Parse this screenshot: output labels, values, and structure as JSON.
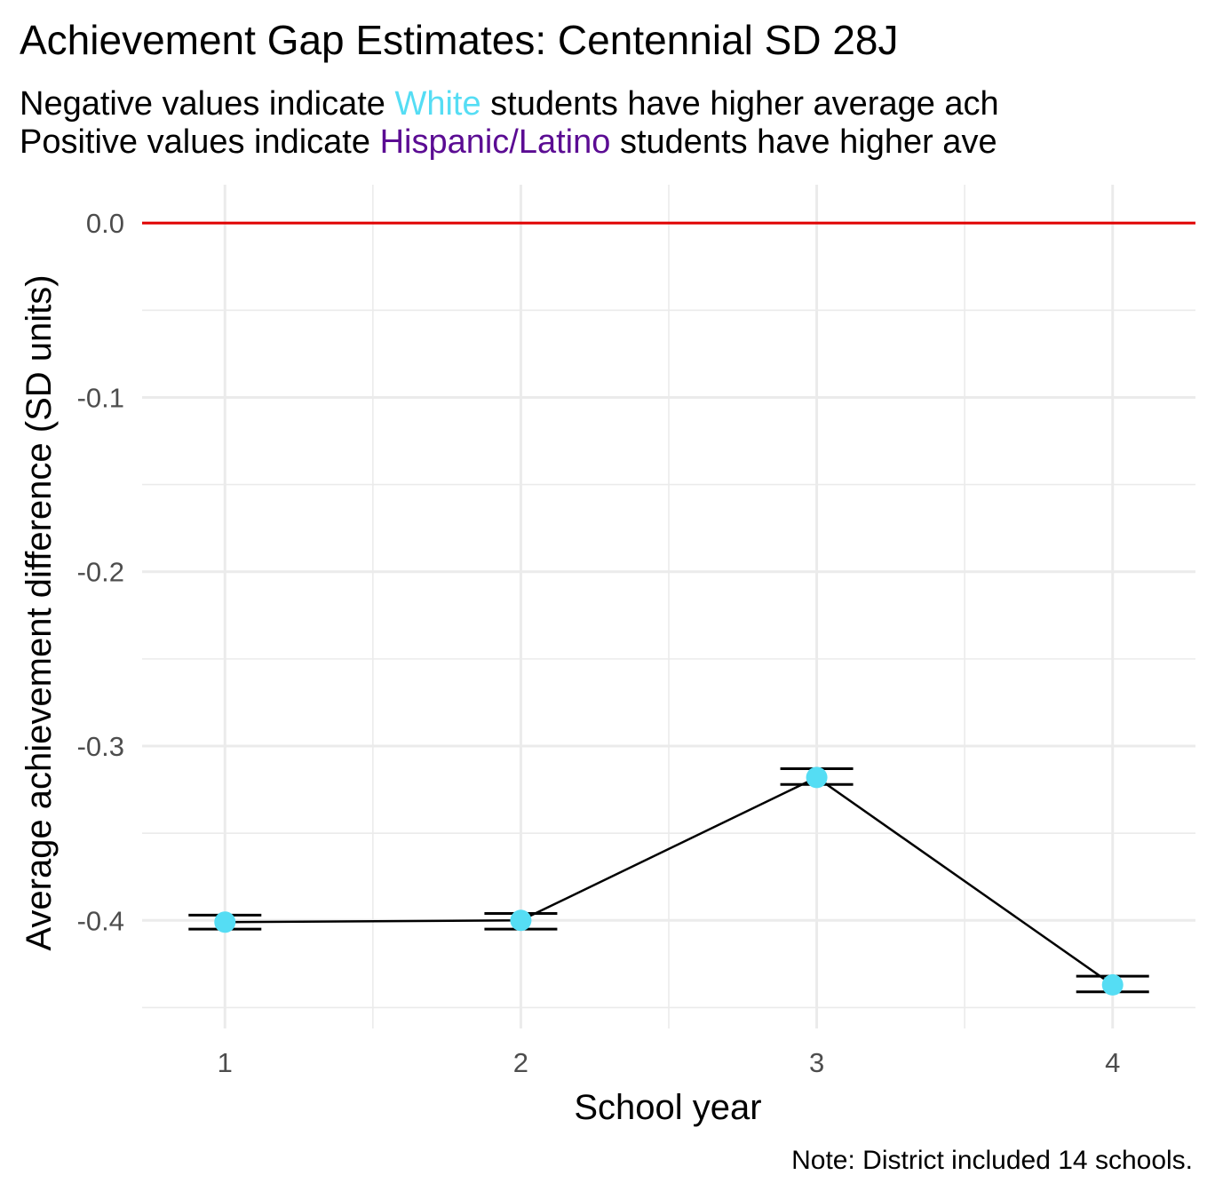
{
  "chart_data": {
    "type": "line",
    "title": "Achievement Gap Estimates: Centennial SD 28J",
    "subtitle": {
      "line1": {
        "before": "Negative values indicate ",
        "highlight": "White",
        "highlight_color": "#55DDF4",
        "after": " students have higher average ach"
      },
      "line2": {
        "before": "Positive values indicate ",
        "highlight": "Hispanic/Latino",
        "highlight_color": "#5B0C93",
        "after": " students have higher ave"
      }
    },
    "xlabel": "School year",
    "ylabel": "Average achievement difference (SD units)",
    "caption": "Note: District included 14 schools.",
    "x": [
      1,
      2,
      3,
      4
    ],
    "x_tick_labels": [
      "1",
      "2",
      "3",
      "4"
    ],
    "y_ticks": [
      0.0,
      -0.1,
      -0.2,
      -0.3,
      -0.4
    ],
    "y_tick_labels": [
      "0.0",
      "-0.1",
      "-0.2",
      "-0.3",
      "-0.4"
    ],
    "xlim": [
      0.72,
      4.28
    ],
    "ylim": [
      -0.462,
      0.022
    ],
    "series": [
      {
        "values": [
          -0.401,
          -0.4,
          -0.318,
          -0.437
        ],
        "error_low": [
          -0.405,
          -0.405,
          -0.322,
          -0.441
        ],
        "error_high": [
          -0.397,
          -0.396,
          -0.313,
          -0.432
        ],
        "point_color": "#55DDF4",
        "line_color": "#000000"
      }
    ],
    "reference_line": {
      "y": 0,
      "color": "#E00000"
    },
    "grid": true,
    "legend": "none"
  }
}
